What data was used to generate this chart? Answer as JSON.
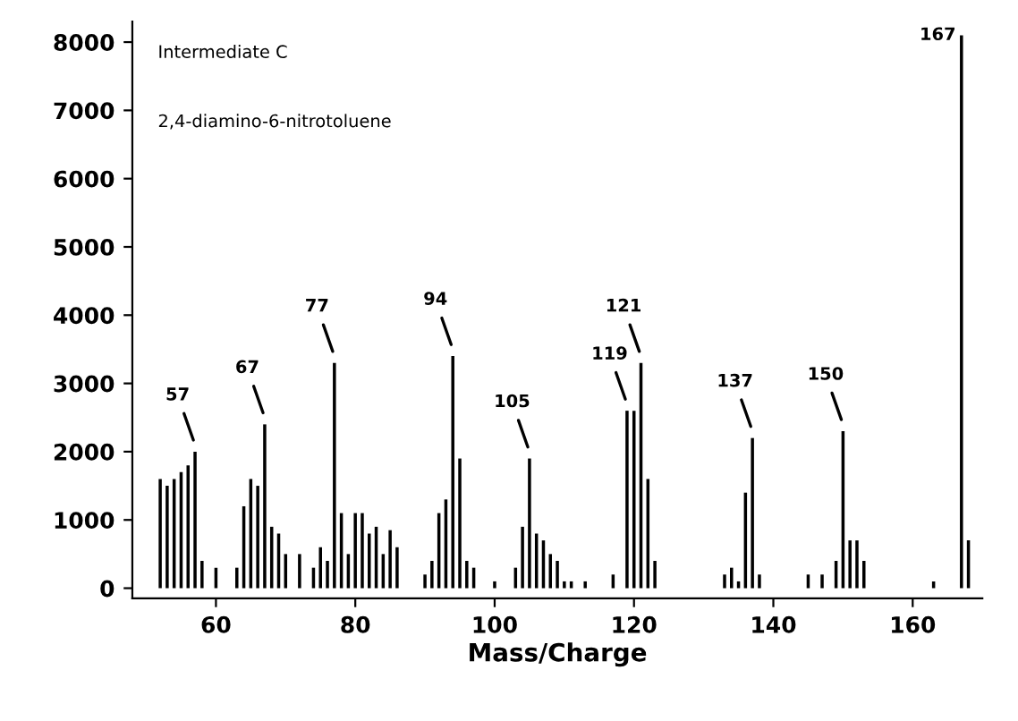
{
  "chart_data": {
    "type": "bar",
    "xlabel": "Mass/Charge",
    "color": "#000000",
    "x": [
      52,
      53,
      54,
      55,
      56,
      57,
      58,
      60,
      63,
      64,
      65,
      66,
      67,
      68,
      69,
      70,
      72,
      74,
      75,
      76,
      77,
      78,
      79,
      80,
      81,
      82,
      83,
      84,
      85,
      86,
      90,
      91,
      92,
      93,
      94,
      95,
      96,
      97,
      100,
      103,
      104,
      105,
      106,
      107,
      108,
      109,
      110,
      111,
      113,
      117,
      119,
      120,
      121,
      122,
      123,
      133,
      134,
      135,
      136,
      137,
      138,
      145,
      147,
      149,
      150,
      151,
      152,
      153,
      163,
      167,
      168
    ],
    "values": [
      1600,
      1500,
      1600,
      1700,
      1800,
      2000,
      400,
      300,
      300,
      1200,
      1600,
      1500,
      2400,
      900,
      800,
      500,
      500,
      300,
      600,
      400,
      3300,
      1100,
      500,
      1100,
      1100,
      800,
      900,
      500,
      850,
      600,
      200,
      400,
      1100,
      1300,
      3400,
      1900,
      400,
      300,
      100,
      300,
      900,
      1900,
      800,
      700,
      500,
      400,
      100,
      100,
      100,
      200,
      2600,
      2600,
      3300,
      1600,
      400,
      200,
      300,
      100,
      1400,
      2200,
      200,
      200,
      200,
      400,
      2300,
      700,
      700,
      400,
      100,
      8100,
      700
    ],
    "xlim": [
      48,
      170
    ],
    "ylim": [
      -150,
      8300
    ],
    "xticks": [
      60,
      80,
      100,
      120,
      140,
      160
    ],
    "yticks": [
      0,
      1000,
      2000,
      3000,
      4000,
      5000,
      6000,
      7000,
      8000
    ],
    "annotations": [
      "Intermediate C",
      "2,4-diamino-6-nitrotoluene",
      {
        "text": "57",
        "x": 57,
        "y": 2000
      },
      {
        "text": "67",
        "x": 67,
        "y": 2400
      },
      {
        "text": "77",
        "x": 77,
        "y": 3300
      },
      {
        "text": "94",
        "x": 94,
        "y": 3400
      },
      {
        "text": "105",
        "x": 105,
        "y": 1900
      },
      {
        "text": "119",
        "x": 119,
        "y": 2600
      },
      {
        "text": "121",
        "x": 121,
        "y": 3300
      },
      {
        "text": "137",
        "x": 137,
        "y": 2200
      },
      {
        "text": "150",
        "x": 150,
        "y": 2300
      },
      {
        "text": "167",
        "x": 167,
        "y": 8100
      }
    ]
  }
}
